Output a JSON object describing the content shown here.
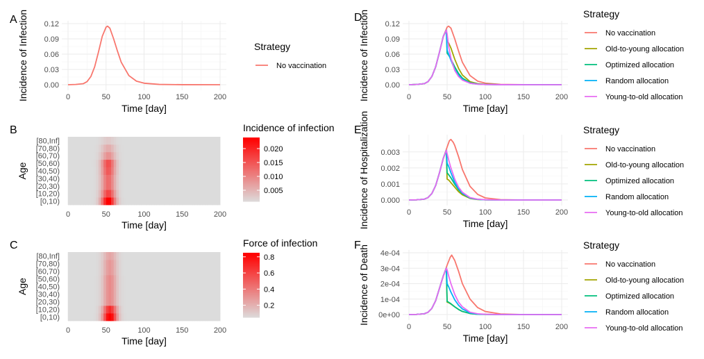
{
  "palette": {
    "no_vaccination": "#F8766D",
    "old_to_young": "#A3A500",
    "optimized": "#00BF7D",
    "random": "#00B0F6",
    "young_to_old": "#E76BF3",
    "heat_low": "#dcdcdc",
    "heat_high": "#ff0000"
  },
  "chart_data": [
    {
      "panel": "A",
      "type": "line",
      "xlabel": "Time [day]",
      "ylabel": "Incidence of Infection",
      "xlim": [
        0,
        200
      ],
      "ylim": [
        0,
        0.12
      ],
      "xticks": [
        "0",
        "50",
        "100",
        "150",
        "200"
      ],
      "yticks": [
        "0.00",
        "0.03",
        "0.06",
        "0.09",
        "0.12"
      ],
      "ytick_values": [
        0,
        0.03,
        0.06,
        0.09,
        0.12
      ],
      "legend": {
        "title": "Strategy",
        "entries": [
          "No vaccination"
        ]
      },
      "series": [
        {
          "name": "No vaccination",
          "color": "#F8766D",
          "x": [
            0,
            10,
            20,
            25,
            30,
            35,
            40,
            45,
            50,
            52,
            55,
            60,
            65,
            70,
            80,
            90,
            100,
            120,
            150,
            200
          ],
          "y": [
            0,
            0.0005,
            0.002,
            0.006,
            0.016,
            0.035,
            0.064,
            0.095,
            0.113,
            0.115,
            0.111,
            0.09,
            0.066,
            0.044,
            0.018,
            0.007,
            0.003,
            0.0006,
            0.0001,
            0
          ]
        }
      ]
    },
    {
      "panel": "B",
      "type": "heatmap",
      "xlabel": "Time [day]",
      "ylabel": "Age",
      "xlim": [
        0,
        200
      ],
      "xticks": [
        "0",
        "50",
        "100",
        "150",
        "200"
      ],
      "categories": [
        "[0,10)",
        "[10,20)",
        "[20,30)",
        "[30,40)",
        "[40,50)",
        "[50,60)",
        "[60,70)",
        "[70,80)",
        "[80,Inf]"
      ],
      "age_scale": [
        0.024,
        0.016,
        0.012,
        0.012,
        0.014,
        0.015,
        0.008,
        0.005,
        0.002
      ],
      "peak_day": 53,
      "legend": {
        "title": "Incidence of infection",
        "ticks": [
          "0.020",
          "0.015",
          "0.010",
          "0.005"
        ],
        "tick_values": [
          0.02,
          0.015,
          0.01,
          0.005
        ],
        "range": [
          0.001,
          0.024
        ]
      }
    },
    {
      "panel": "C",
      "type": "heatmap",
      "xlabel": "Time [day]",
      "ylabel": "Age",
      "xlim": [
        0,
        200
      ],
      "xticks": [
        "0",
        "50",
        "100",
        "150",
        "200"
      ],
      "categories": [
        "[0,10)",
        "[10,20)",
        "[20,30)",
        "[30,40)",
        "[40,50)",
        "[50,60)",
        "[60,70)",
        "[70,80)",
        "[80,Inf]"
      ],
      "age_scale": [
        0.85,
        0.65,
        0.3,
        0.3,
        0.3,
        0.3,
        0.25,
        0.25,
        0.2
      ],
      "peak_day": 55,
      "legend": {
        "title": "Force of infection",
        "ticks": [
          "0.8",
          "0.6",
          "0.4",
          "0.2"
        ],
        "tick_values": [
          0.8,
          0.6,
          0.4,
          0.2
        ],
        "range": [
          0.05,
          0.85
        ]
      }
    },
    {
      "panel": "D",
      "type": "line",
      "xlabel": "Time [day]",
      "ylabel": "Incidence of Infection",
      "xlim": [
        0,
        200
      ],
      "ylim": [
        0,
        0.12
      ],
      "xticks": [
        "0",
        "50",
        "100",
        "150",
        "200"
      ],
      "yticks": [
        "0.00",
        "0.03",
        "0.06",
        "0.09",
        "0.12"
      ],
      "ytick_values": [
        0,
        0.03,
        0.06,
        0.09,
        0.12
      ],
      "legend": {
        "title": "Strategy",
        "entries": [
          "No vaccination",
          "Old-to-young allocation",
          "Optimized allocation",
          "Random allocation",
          "Young-to-old allocation"
        ]
      },
      "series": [
        {
          "name": "No vaccination",
          "color": "#F8766D",
          "x": [
            0,
            10,
            20,
            25,
            30,
            35,
            40,
            45,
            50,
            52,
            55,
            60,
            65,
            70,
            80,
            90,
            100,
            120,
            150,
            200
          ],
          "y": [
            0,
            0.0005,
            0.002,
            0.006,
            0.016,
            0.035,
            0.064,
            0.095,
            0.113,
            0.115,
            0.111,
            0.09,
            0.066,
            0.044,
            0.018,
            0.007,
            0.003,
            0.0006,
            0.0001,
            0
          ]
        },
        {
          "name": "Old-to-young allocation",
          "color": "#A3A500",
          "x": [
            0,
            10,
            20,
            25,
            30,
            35,
            40,
            45,
            49,
            50,
            52,
            55,
            60,
            65,
            70,
            80,
            90,
            100,
            120,
            200
          ],
          "y": [
            0,
            0.0005,
            0.002,
            0.006,
            0.016,
            0.035,
            0.064,
            0.095,
            0.107,
            0.085,
            0.082,
            0.072,
            0.05,
            0.032,
            0.019,
            0.006,
            0.002,
            0.0008,
            0.0001,
            0
          ]
        },
        {
          "name": "Optimized allocation",
          "color": "#00BF7D",
          "x": [
            0,
            10,
            20,
            25,
            30,
            35,
            40,
            45,
            49,
            50,
            52,
            55,
            60,
            65,
            70,
            80,
            90,
            100,
            120,
            200
          ],
          "y": [
            0,
            0.0005,
            0.002,
            0.006,
            0.016,
            0.035,
            0.064,
            0.095,
            0.107,
            0.062,
            0.058,
            0.05,
            0.035,
            0.022,
            0.013,
            0.004,
            0.0015,
            0.0005,
            0.0001,
            0
          ]
        },
        {
          "name": "Random allocation",
          "color": "#00B0F6",
          "x": [
            0,
            10,
            20,
            25,
            30,
            35,
            40,
            45,
            49,
            50,
            52,
            55,
            60,
            65,
            70,
            80,
            90,
            100,
            120,
            200
          ],
          "y": [
            0,
            0.0005,
            0.002,
            0.006,
            0.016,
            0.035,
            0.064,
            0.095,
            0.107,
            0.068,
            0.06,
            0.048,
            0.03,
            0.018,
            0.01,
            0.003,
            0.001,
            0.0004,
            0.0001,
            0
          ]
        },
        {
          "name": "Young-to-old allocation",
          "color": "#E76BF3",
          "x": [
            0,
            10,
            20,
            25,
            30,
            35,
            40,
            45,
            49,
            50,
            52,
            55,
            60,
            65,
            70,
            80,
            90,
            100,
            120,
            200
          ],
          "y": [
            0,
            0.0005,
            0.002,
            0.006,
            0.016,
            0.035,
            0.064,
            0.095,
            0.107,
            0.1,
            0.075,
            0.052,
            0.028,
            0.016,
            0.009,
            0.003,
            0.001,
            0.0003,
            0.0001,
            0
          ]
        }
      ]
    },
    {
      "panel": "E",
      "type": "line",
      "xlabel": "Time [day]",
      "ylabel": "Incidence of Hospitalization",
      "xlim": [
        0,
        200
      ],
      "ylim": [
        0,
        0.0039
      ],
      "xticks": [
        "0",
        "50",
        "100",
        "150",
        "200"
      ],
      "yticks": [
        "0.000",
        "0.001",
        "0.002",
        "0.003"
      ],
      "ytick_values": [
        0,
        0.001,
        0.002,
        0.003
      ],
      "legend": {
        "title": "Strategy",
        "entries": [
          "No vaccination",
          "Old-to-young allocation",
          "Optimized allocation",
          "Random allocation",
          "Young-to-old allocation"
        ]
      },
      "series": [
        {
          "name": "No vaccination",
          "color": "#F8766D",
          "x": [
            0,
            10,
            20,
            25,
            30,
            35,
            40,
            45,
            50,
            53,
            55,
            58,
            60,
            65,
            70,
            80,
            90,
            100,
            120,
            150,
            200
          ],
          "y": [
            0,
            1e-05,
            5e-05,
            0.00015,
            0.0004,
            0.0009,
            0.0017,
            0.0026,
            0.0033,
            0.0037,
            0.00378,
            0.0036,
            0.0034,
            0.0027,
            0.0019,
            0.00085,
            0.00035,
            0.00013,
            2e-05,
            0,
            0
          ]
        },
        {
          "name": "Old-to-young allocation",
          "color": "#A3A500",
          "x": [
            0,
            10,
            20,
            25,
            30,
            35,
            40,
            45,
            49,
            50,
            52,
            55,
            60,
            65,
            70,
            80,
            90,
            100,
            120,
            200
          ],
          "y": [
            0,
            1e-05,
            5e-05,
            0.00015,
            0.0004,
            0.0009,
            0.0017,
            0.0026,
            0.0031,
            0.0013,
            0.00125,
            0.00108,
            0.0008,
            0.00052,
            0.00032,
            0.0001,
            3e-05,
            1e-05,
            0,
            0
          ]
        },
        {
          "name": "Optimized allocation",
          "color": "#00BF7D",
          "x": [
            0,
            10,
            20,
            25,
            30,
            35,
            40,
            45,
            49,
            50,
            52,
            55,
            60,
            65,
            70,
            80,
            90,
            100,
            120,
            200
          ],
          "y": [
            0,
            1e-05,
            5e-05,
            0.00015,
            0.0004,
            0.0009,
            0.0017,
            0.0026,
            0.0031,
            0.0017,
            0.00158,
            0.00138,
            0.00098,
            0.00064,
            0.0004,
            0.00012,
            4e-05,
            1e-05,
            0,
            0
          ]
        },
        {
          "name": "Random allocation",
          "color": "#00B0F6",
          "x": [
            0,
            10,
            20,
            25,
            30,
            35,
            40,
            45,
            49,
            50,
            52,
            55,
            60,
            65,
            70,
            80,
            90,
            100,
            120,
            200
          ],
          "y": [
            0,
            1e-05,
            5e-05,
            0.00015,
            0.0004,
            0.0009,
            0.0017,
            0.0026,
            0.0031,
            0.0023,
            0.0021,
            0.0017,
            0.0011,
            0.0007,
            0.00042,
            0.00013,
            4e-05,
            1e-05,
            0,
            0
          ]
        },
        {
          "name": "Young-to-old allocation",
          "color": "#E76BF3",
          "x": [
            0,
            10,
            20,
            25,
            30,
            35,
            40,
            45,
            49,
            50,
            52,
            55,
            60,
            65,
            70,
            80,
            90,
            100,
            120,
            200
          ],
          "y": [
            0,
            1e-05,
            5e-05,
            0.00015,
            0.0004,
            0.0009,
            0.0017,
            0.0026,
            0.0031,
            0.0029,
            0.0025,
            0.002,
            0.0013,
            0.0008,
            0.00048,
            0.00015,
            5e-05,
            2e-05,
            0,
            0
          ]
        }
      ]
    },
    {
      "panel": "F",
      "type": "line",
      "xlabel": "Time [day]",
      "ylabel": "Incidence of Death",
      "xlim": [
        0,
        200
      ],
      "ylim": [
        0,
        0.0004
      ],
      "xticks": [
        "0",
        "50",
        "100",
        "150",
        "200"
      ],
      "yticks": [
        "0e+00",
        "1e-04",
        "2e-04",
        "3e-04",
        "4e-04"
      ],
      "ytick_values": [
        0,
        0.0001,
        0.0002,
        0.0003,
        0.0004
      ],
      "legend": {
        "title": "Strategy",
        "entries": [
          "No vaccination",
          "Old-to-young allocation",
          "Optimized allocation",
          "Random allocation",
          "Young-to-old allocation"
        ]
      },
      "series": [
        {
          "name": "No vaccination",
          "color": "#F8766D",
          "x": [
            0,
            10,
            20,
            25,
            30,
            35,
            40,
            45,
            50,
            54,
            56,
            60,
            65,
            70,
            80,
            90,
            100,
            120,
            150,
            200
          ],
          "y": [
            0,
            1e-06,
            5e-06,
            1.5e-05,
            4e-05,
            9e-05,
            0.00017,
            0.00025,
            0.00032,
            0.00037,
            0.000385,
            0.00035,
            0.00028,
            0.0002,
            0.0001,
            4.5e-05,
            2e-05,
            4e-06,
            0,
            0
          ]
        },
        {
          "name": "Old-to-young allocation",
          "color": "#A3A500",
          "x": [
            0,
            10,
            20,
            25,
            30,
            35,
            40,
            45,
            49,
            50,
            52,
            55,
            60,
            65,
            70,
            80,
            90,
            100,
            120,
            200
          ],
          "y": [
            0,
            1e-06,
            5e-06,
            1.5e-05,
            4e-05,
            9e-05,
            0.00017,
            0.00025,
            0.0003,
            8e-05,
            7.7e-05,
            6.8e-05,
            5e-05,
            3.3e-05,
            2e-05,
            7e-06,
            2e-06,
            1e-06,
            0,
            0
          ]
        },
        {
          "name": "Optimized allocation",
          "color": "#00BF7D",
          "x": [
            0,
            10,
            20,
            25,
            30,
            35,
            40,
            45,
            49,
            50,
            52,
            55,
            60,
            65,
            70,
            80,
            90,
            100,
            120,
            200
          ],
          "y": [
            0,
            1e-06,
            5e-06,
            1.5e-05,
            4e-05,
            9e-05,
            0.00017,
            0.00025,
            0.0003,
            8.5e-05,
            8e-05,
            7e-05,
            5e-05,
            3.3e-05,
            2e-05,
            7e-06,
            2e-06,
            1e-06,
            0,
            0
          ]
        },
        {
          "name": "Random allocation",
          "color": "#00B0F6",
          "x": [
            0,
            10,
            20,
            25,
            30,
            35,
            40,
            45,
            49,
            50,
            52,
            55,
            60,
            65,
            70,
            80,
            90,
            100,
            120,
            200
          ],
          "y": [
            0,
            1e-06,
            5e-06,
            1.5e-05,
            4e-05,
            9e-05,
            0.00017,
            0.00025,
            0.0003,
            0.0002,
            0.00018,
            0.000145,
            9.5e-05,
            6e-05,
            3.6e-05,
            1.1e-05,
            3e-06,
            1e-06,
            0,
            0
          ]
        },
        {
          "name": "Young-to-old allocation",
          "color": "#E76BF3",
          "x": [
            0,
            10,
            20,
            25,
            30,
            35,
            40,
            45,
            49,
            50,
            52,
            55,
            60,
            65,
            70,
            80,
            90,
            100,
            120,
            200
          ],
          "y": [
            0,
            1e-06,
            5e-06,
            1.5e-05,
            4e-05,
            9e-05,
            0.00017,
            0.00025,
            0.0003,
            0.00029,
            0.00025,
            0.0002,
            0.00013,
            8e-05,
            5e-05,
            1.5e-05,
            5e-06,
            2e-06,
            0,
            0
          ]
        }
      ]
    }
  ]
}
